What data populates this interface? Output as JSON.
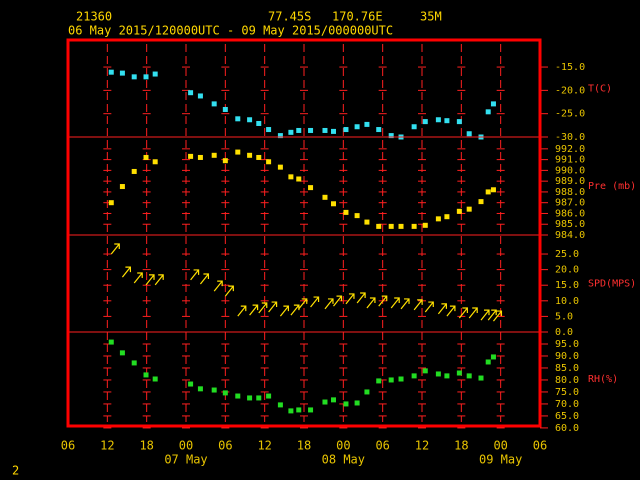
{
  "header": {
    "station": "21360",
    "lat": "77.45S",
    "lon": "170.76E",
    "elev": "35M",
    "period": "06 May 2015/120000UTC - 09 May 2015/000000UTC",
    "page": "2"
  },
  "chart_data": {
    "type": "scatter",
    "x": [
      12.6,
      14.3,
      16.1,
      17.9,
      19.3,
      24.7,
      26.2,
      28.3,
      30.0,
      31.9,
      33.7,
      35.1,
      36.6,
      38.4,
      40.0,
      41.2,
      43.0,
      45.2,
      46.5,
      48.4,
      50.1,
      51.6,
      53.4,
      55.3,
      56.8,
      58.8,
      60.5,
      62.5,
      63.8,
      65.7,
      67.2,
      69.0,
      70.1,
      70.9
    ],
    "xlim": [
      6,
      78
    ],
    "xticks": [
      {
        "value": 6,
        "label": "06"
      },
      12,
      18,
      {
        "value": 24,
        "label": "00"
      },
      {
        "value": 30,
        "label": "06"
      },
      {
        "value": 36,
        "label": "12"
      },
      {
        "value": 42,
        "label": "18"
      },
      {
        "value": 48,
        "label": "00"
      },
      {
        "value": 54,
        "label": "06"
      },
      {
        "value": 60,
        "label": "12"
      },
      {
        "value": 66,
        "label": "18"
      },
      {
        "value": 72,
        "label": "00"
      },
      {
        "value": 78,
        "label": "06"
      }
    ],
    "day_labels": [
      {
        "value": 24,
        "label": "07 May"
      },
      {
        "value": 48,
        "label": "08 May"
      },
      {
        "value": 72,
        "label": "09 May"
      }
    ],
    "grid": true,
    "panels": [
      {
        "label": "T(C)",
        "type": "scatter",
        "color": "#33e0f0",
        "ylim": [
          -30,
          -9.2
        ],
        "yticks": [
          {
            "value": -15,
            "label": "-15.0"
          },
          {
            "value": -20,
            "label": "-20.0"
          },
          {
            "value": -25,
            "label": "-25.0"
          },
          {
            "value": -30,
            "label": "-30.0"
          }
        ],
        "values": [
          -16.1,
          -16.3,
          -17.1,
          -17.1,
          -16.5,
          -20.5,
          -21.2,
          -22.9,
          -24.1,
          -26.1,
          -26.3,
          -27.1,
          -28.4,
          -29.7,
          -29.0,
          -28.6,
          -28.6,
          -28.6,
          -28.8,
          -28.4,
          -27.8,
          -27.3,
          -28.4,
          -29.7,
          -30.0,
          -27.8,
          -26.7,
          -26.3,
          -26.5,
          -26.7,
          -29.3,
          -30.0,
          -24.6,
          -22.9
        ]
      },
      {
        "label": "Pre (mb)",
        "type": "scatter",
        "color": "#ffe000",
        "ylim": [
          984,
          993.1
        ],
        "yticks": [
          {
            "value": 992,
            "label": "992.0"
          },
          {
            "value": 991,
            "label": "991.0"
          },
          {
            "value": 990,
            "label": "990.0"
          },
          {
            "value": 989,
            "label": "989.0"
          },
          {
            "value": 988,
            "label": "988.0"
          },
          {
            "value": 987,
            "label": "987.0"
          },
          {
            "value": 986,
            "label": "986.0"
          },
          {
            "value": 985,
            "label": "985.0"
          },
          {
            "value": 984,
            "label": "984.0"
          }
        ],
        "values": [
          987.0,
          988.5,
          989.9,
          991.2,
          990.8,
          991.3,
          991.2,
          991.4,
          990.9,
          991.7,
          991.4,
          991.2,
          990.8,
          990.3,
          989.4,
          989.2,
          988.4,
          987.5,
          986.9,
          986.1,
          985.8,
          985.2,
          984.8,
          984.8,
          984.8,
          984.8,
          984.9,
          985.5,
          985.7,
          986.2,
          986.4,
          987.1,
          988.0,
          988.2
        ]
      },
      {
        "label": "SPD(MPS)",
        "type": "arrow",
        "color": "#ffe000",
        "ylim": [
          0,
          31.1
        ],
        "yticks": [
          {
            "value": 25,
            "label": "25.0"
          },
          {
            "value": 20,
            "label": "20.0"
          },
          {
            "value": 15,
            "label": "15.0"
          },
          {
            "value": 10,
            "label": "10.0"
          },
          {
            "value": 5,
            "label": "5.0"
          },
          {
            "value": 0,
            "label": "0.0"
          }
        ],
        "values": [
          25.0,
          17.6,
          15.7,
          15.1,
          15.1,
          16.7,
          15.4,
          13.1,
          11.5,
          5.1,
          5.4,
          6.1,
          6.4,
          5.1,
          5.4,
          7.4,
          8.0,
          7.4,
          8.3,
          9.0,
          9.3,
          7.7,
          8.3,
          7.7,
          7.4,
          7.1,
          6.4,
          5.8,
          5.1,
          4.5,
          4.5,
          3.8,
          3.8,
          3.5
        ]
      },
      {
        "label": "RH(%)",
        "type": "scatter",
        "color": "#22dd22",
        "ylim": [
          60.8,
          100
        ],
        "yticks": [
          {
            "value": 95,
            "label": "95.0"
          },
          {
            "value": 90,
            "label": "90.0"
          },
          {
            "value": 85,
            "label": "85.0"
          },
          {
            "value": 80,
            "label": "80.0"
          },
          {
            "value": 75,
            "label": "75.0"
          },
          {
            "value": 70,
            "label": "70.0"
          },
          {
            "value": 65,
            "label": "65.0"
          },
          {
            "value": 60,
            "label": "60.0"
          }
        ],
        "values": [
          95.8,
          91.3,
          87.1,
          82.1,
          80.4,
          78.3,
          76.3,
          75.8,
          74.6,
          73.3,
          72.5,
          72.5,
          73.3,
          69.6,
          67.1,
          67.5,
          67.5,
          70.8,
          71.7,
          70.0,
          70.4,
          75.0,
          79.6,
          80.0,
          80.4,
          81.7,
          83.8,
          82.5,
          81.7,
          82.9,
          81.7,
          80.8,
          87.5,
          89.6
        ]
      }
    ]
  }
}
